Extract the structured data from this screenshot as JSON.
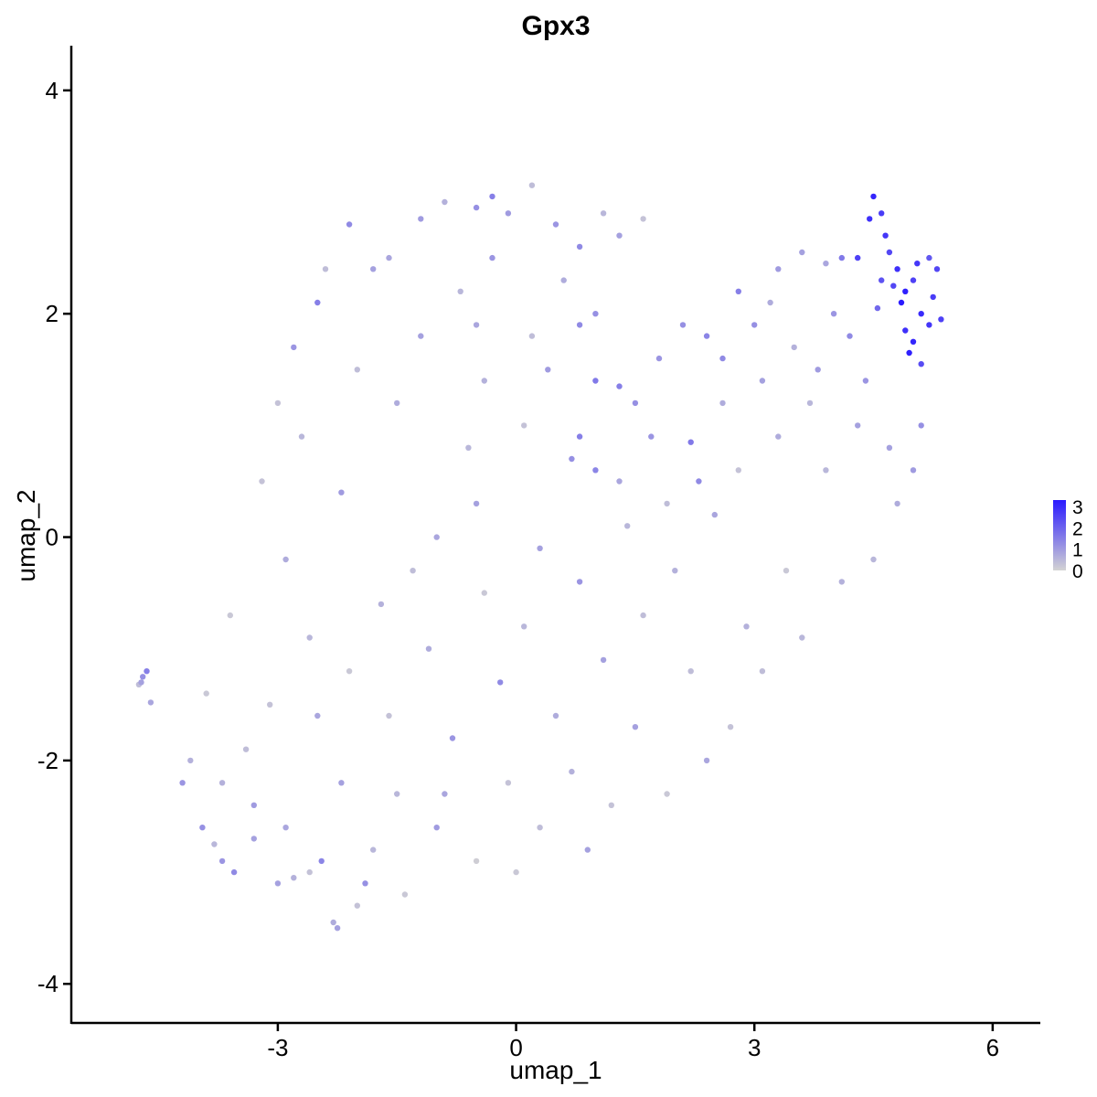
{
  "chart_data": {
    "type": "scatter",
    "title": "Gpx3",
    "xlabel": "umap_1",
    "ylabel": "umap_2",
    "xlim": [
      -5.6,
      6.6
    ],
    "ylim": [
      -4.35,
      4.4
    ],
    "x_ticks": [
      -3,
      0,
      3,
      6
    ],
    "x_tick_labels": [
      "-3",
      "0",
      "3",
      "6"
    ],
    "y_ticks": [
      -4,
      -2,
      0,
      2,
      4
    ],
    "y_tick_labels": [
      "-4",
      "-2",
      "0",
      "2",
      "4"
    ],
    "grid": false,
    "color_scale": {
      "low_color": "#d3d3d3",
      "high_color": "#2a1aff",
      "min": 0,
      "max": 3.3,
      "legend_ticks": [
        0,
        1,
        2,
        3
      ],
      "legend_tick_labels": [
        "0",
        "1",
        "2",
        "3"
      ],
      "legend_position": "right"
    },
    "points": [
      [
        -4.7,
        -1.25,
        1.2
      ],
      [
        -4.65,
        -1.2,
        1.5
      ],
      [
        -4.72,
        -1.3,
        0.9
      ],
      [
        -4.6,
        -1.48,
        0.8
      ],
      [
        -4.75,
        -1.32,
        0.4
      ],
      [
        -4.2,
        -2.2,
        1.1
      ],
      [
        -4.1,
        -2.0,
        0.6
      ],
      [
        -3.95,
        -2.6,
        1.2
      ],
      [
        -3.8,
        -2.75,
        0.5
      ],
      [
        -3.7,
        -2.9,
        1.1
      ],
      [
        -3.55,
        -3.0,
        1.3
      ],
      [
        -3.3,
        -2.4,
        1.0
      ],
      [
        -3.0,
        -3.1,
        0.9
      ],
      [
        -2.8,
        -3.05,
        0.6
      ],
      [
        -2.45,
        -2.9,
        1.4
      ],
      [
        -2.3,
        -3.45,
        0.7
      ],
      [
        -2.25,
        -3.5,
        0.9
      ],
      [
        -2.0,
        -3.3,
        0.3
      ],
      [
        -1.9,
        -3.1,
        1.2
      ],
      [
        -1.4,
        -3.2,
        0.2
      ],
      [
        -2.5,
        -1.6,
        0.8
      ],
      [
        -2.1,
        -1.2,
        0.2
      ],
      [
        -1.3,
        -0.3,
        0.4
      ],
      [
        -0.5,
        0.3,
        0.9
      ],
      [
        0.1,
        -0.8,
        0.5
      ],
      [
        -2.8,
        1.7,
        1.1
      ],
      [
        -2.5,
        2.1,
        1.5
      ],
      [
        -2.1,
        2.8,
        1.3
      ],
      [
        -1.8,
        2.4,
        0.9
      ],
      [
        -1.2,
        2.85,
        1.0
      ],
      [
        -0.9,
        3.0,
        0.6
      ],
      [
        -0.5,
        2.95,
        1.2
      ],
      [
        -0.3,
        3.05,
        1.5
      ],
      [
        -0.1,
        2.9,
        1.0
      ],
      [
        0.2,
        3.15,
        0.4
      ],
      [
        0.5,
        2.8,
        1.1
      ],
      [
        0.8,
        2.6,
        1.3
      ],
      [
        1.1,
        2.9,
        0.5
      ],
      [
        1.6,
        2.85,
        0.3
      ],
      [
        1.3,
        2.7,
        0.9
      ],
      [
        0.4,
        1.5,
        1.0
      ],
      [
        0.8,
        1.9,
        1.3
      ],
      [
        1.0,
        1.4,
        1.6
      ],
      [
        1.3,
        1.35,
        1.5
      ],
      [
        1.5,
        1.2,
        1.2
      ],
      [
        1.8,
        1.6,
        1.1
      ],
      [
        2.1,
        1.9,
        1.2
      ],
      [
        2.4,
        1.8,
        1.4
      ],
      [
        2.2,
        0.85,
        1.6
      ],
      [
        2.3,
        0.5,
        1.3
      ],
      [
        0.8,
        0.9,
        1.5
      ],
      [
        1.0,
        0.6,
        1.4
      ],
      [
        0.7,
        0.7,
        1.2
      ],
      [
        1.7,
        0.9,
        1.1
      ],
      [
        2.6,
        1.2,
        0.7
      ],
      [
        2.8,
        2.2,
        1.5
      ],
      [
        3.0,
        1.9,
        1.2
      ],
      [
        3.3,
        2.4,
        1.0
      ],
      [
        3.6,
        2.55,
        0.9
      ],
      [
        3.9,
        2.45,
        0.8
      ],
      [
        4.1,
        2.5,
        1.6
      ],
      [
        4.3,
        2.5,
        2.6
      ],
      [
        4.45,
        2.85,
        2.9
      ],
      [
        4.5,
        3.05,
        3.1
      ],
      [
        4.6,
        2.9,
        2.7
      ],
      [
        4.65,
        2.7,
        2.8
      ],
      [
        4.7,
        2.55,
        2.5
      ],
      [
        4.8,
        2.4,
        2.9
      ],
      [
        4.9,
        2.2,
        3.2
      ],
      [
        4.85,
        2.1,
        3.3
      ],
      [
        5.0,
        2.3,
        2.6
      ],
      [
        5.1,
        2.0,
        3.0
      ],
      [
        5.2,
        1.9,
        2.8
      ],
      [
        5.25,
        2.15,
        2.7
      ],
      [
        5.3,
        2.4,
        2.5
      ],
      [
        5.35,
        1.95,
        2.6
      ],
      [
        5.0,
        1.75,
        3.1
      ],
      [
        4.9,
        1.85,
        2.9
      ],
      [
        4.95,
        1.65,
        3.2
      ],
      [
        5.1,
        1.55,
        2.4
      ],
      [
        4.6,
        2.3,
        2.3
      ],
      [
        4.75,
        2.25,
        2.5
      ],
      [
        5.05,
        2.45,
        2.8
      ],
      [
        5.2,
        2.5,
        2.2
      ],
      [
        4.55,
        2.05,
        1.9
      ],
      [
        4.2,
        1.8,
        1.3
      ],
      [
        3.8,
        1.5,
        1.0
      ],
      [
        3.5,
        1.7,
        0.6
      ],
      [
        4.4,
        1.4,
        1.1
      ],
      [
        4.7,
        0.8,
        0.9
      ],
      [
        5.1,
        1.0,
        1.2
      ],
      [
        5.0,
        0.6,
        1.0
      ],
      [
        4.8,
        0.3,
        0.7
      ],
      [
        4.5,
        -0.2,
        0.5
      ],
      [
        4.1,
        -0.4,
        0.6
      ],
      [
        3.6,
        -0.9,
        0.5
      ],
      [
        3.1,
        -1.2,
        0.4
      ],
      [
        2.7,
        -1.7,
        0.3
      ],
      [
        2.4,
        -2.0,
        0.8
      ],
      [
        1.9,
        -2.3,
        0.2
      ],
      [
        1.2,
        -2.4,
        0.3
      ],
      [
        0.9,
        -2.8,
        0.9
      ],
      [
        0.3,
        -2.6,
        0.4
      ],
      [
        0.0,
        -3.0,
        0.2
      ],
      [
        -0.5,
        -2.9,
        0.1
      ],
      [
        -1.0,
        -2.6,
        1.0
      ],
      [
        -1.5,
        -2.3,
        0.5
      ],
      [
        -0.8,
        -1.8,
        1.1
      ],
      [
        -0.2,
        -1.3,
        1.3
      ],
      [
        0.5,
        -1.6,
        0.7
      ],
      [
        1.1,
        -1.1,
        0.9
      ],
      [
        1.6,
        -0.7,
        0.4
      ],
      [
        2.0,
        -0.3,
        0.6
      ],
      [
        2.5,
        0.2,
        0.8
      ],
      [
        1.4,
        0.1,
        0.5
      ],
      [
        -3.4,
        -1.9,
        0.4
      ],
      [
        -3.1,
        -1.5,
        0.3
      ],
      [
        -3.6,
        -0.7,
        0.2
      ],
      [
        -2.9,
        -0.2,
        0.7
      ],
      [
        -3.2,
        0.5,
        0.3
      ],
      [
        -2.7,
        0.9,
        0.5
      ],
      [
        -2.2,
        0.4,
        1.0
      ],
      [
        -1.7,
        -0.6,
        0.6
      ],
      [
        -1.0,
        0.0,
        0.8
      ],
      [
        -0.6,
        0.8,
        0.5
      ],
      [
        -1.5,
        1.2,
        0.7
      ],
      [
        -2.0,
        1.5,
        0.4
      ],
      [
        -1.2,
        1.8,
        0.9
      ],
      [
        -0.4,
        1.4,
        0.6
      ],
      [
        0.1,
        1.0,
        0.3
      ],
      [
        -0.7,
        2.2,
        0.5
      ],
      [
        -1.6,
        2.5,
        0.8
      ],
      [
        -2.4,
        2.4,
        0.4
      ],
      [
        -3.0,
        1.2,
        0.3
      ],
      [
        -2.6,
        -0.9,
        0.5
      ],
      [
        -3.9,
        -1.4,
        0.2
      ],
      [
        -3.7,
        -2.2,
        0.6
      ],
      [
        -2.9,
        -2.6,
        0.8
      ],
      [
        -2.2,
        -2.2,
        0.9
      ],
      [
        -1.6,
        -1.6,
        0.3
      ],
      [
        -1.1,
        -1.0,
        0.7
      ],
      [
        -0.4,
        -0.5,
        0.2
      ],
      [
        0.3,
        -0.1,
        0.9
      ],
      [
        0.8,
        -0.4,
        1.1
      ],
      [
        1.3,
        0.5,
        0.8
      ],
      [
        1.9,
        0.3,
        0.4
      ],
      [
        2.8,
        0.6,
        0.3
      ],
      [
        3.3,
        0.9,
        0.7
      ],
      [
        3.9,
        0.6,
        0.5
      ],
      [
        4.3,
        1.0,
        0.9
      ],
      [
        3.4,
        -0.3,
        0.2
      ],
      [
        2.9,
        -0.8,
        0.6
      ],
      [
        2.2,
        -1.2,
        0.4
      ],
      [
        1.5,
        -1.7,
        0.9
      ],
      [
        0.7,
        -2.1,
        0.6
      ],
      [
        -0.1,
        -2.2,
        0.3
      ],
      [
        -0.9,
        -2.3,
        0.8
      ],
      [
        -1.8,
        -2.8,
        0.5
      ],
      [
        -2.6,
        -3.0,
        0.3
      ],
      [
        -3.3,
        -2.7,
        0.9
      ],
      [
        -0.3,
        2.5,
        1.1
      ],
      [
        0.6,
        2.3,
        0.7
      ],
      [
        1.0,
        2.0,
        1.2
      ],
      [
        0.2,
        1.8,
        0.4
      ],
      [
        -0.5,
        1.9,
        0.8
      ],
      [
        2.6,
        1.6,
        1.3
      ],
      [
        3.1,
        1.4,
        0.9
      ],
      [
        3.7,
        1.2,
        0.5
      ],
      [
        4.0,
        2.0,
        1.1
      ],
      [
        3.2,
        2.1,
        0.7
      ]
    ]
  }
}
